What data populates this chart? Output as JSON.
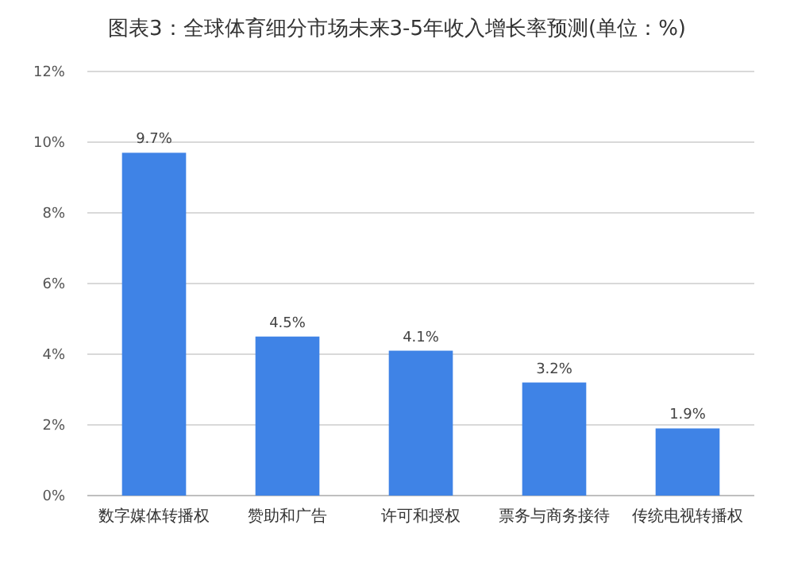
{
  "chart_data": {
    "type": "bar",
    "title": "图表3：全球体育细分市场未来3-5年收入增长率预测(单位：%)",
    "categories": [
      "数字媒体转播权",
      "赞助和广告",
      "许可和授权",
      "票务与商务接待",
      "传统电视转播权"
    ],
    "values": [
      9.7,
      4.5,
      4.1,
      3.2,
      1.9
    ],
    "value_labels": [
      "9.7%",
      "4.5%",
      "4.1%",
      "3.2%",
      "1.9%"
    ],
    "color": "#3f83e6",
    "ylim": [
      0,
      12
    ],
    "yticks": [
      {
        "value": 0,
        "label": "0%"
      },
      {
        "value": 2,
        "label": "2%"
      },
      {
        "value": 4,
        "label": "4%"
      },
      {
        "value": 6,
        "label": "6%"
      },
      {
        "value": 8,
        "label": "8%"
      },
      {
        "value": 10,
        "label": "10%"
      },
      {
        "value": 12,
        "label": "12%"
      }
    ],
    "grid": "y"
  }
}
